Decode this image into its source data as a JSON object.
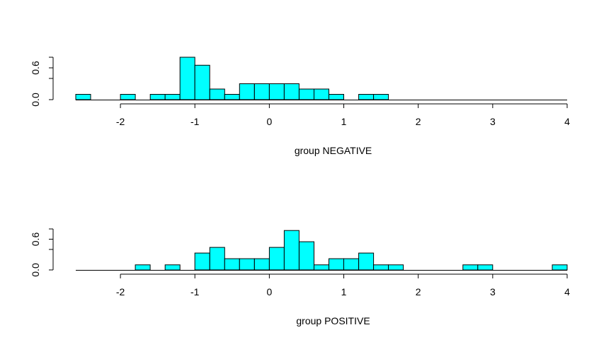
{
  "chart_data": [
    {
      "type": "bar",
      "xlabel": "group NEGATIVE",
      "ylabel": "",
      "title": "",
      "bar_color": "#00FFFF",
      "x_ticks": [
        "-2",
        "-1",
        "0",
        "1",
        "2",
        "3",
        "4"
      ],
      "x_tick_values": [
        -2,
        -1,
        0,
        1,
        2,
        3,
        4
      ],
      "y_ticks": [
        "0.0",
        "0.6"
      ],
      "y_tick_values": [
        0.0,
        0.6
      ],
      "xlim": [
        -2.6,
        4.0
      ],
      "ylim": [
        0,
        0.8
      ],
      "bin_width": 0.2,
      "bins": [
        {
          "start": -2.6,
          "value": 0.1
        },
        {
          "start": -2.0,
          "value": 0.1
        },
        {
          "start": -1.6,
          "value": 0.1
        },
        {
          "start": -1.4,
          "value": 0.1
        },
        {
          "start": -1.2,
          "value": 0.8
        },
        {
          "start": -1.0,
          "value": 0.65
        },
        {
          "start": -0.8,
          "value": 0.2
        },
        {
          "start": -0.6,
          "value": 0.1
        },
        {
          "start": -0.4,
          "value": 0.3
        },
        {
          "start": -0.2,
          "value": 0.3
        },
        {
          "start": 0.0,
          "value": 0.3
        },
        {
          "start": 0.2,
          "value": 0.3
        },
        {
          "start": 0.4,
          "value": 0.2
        },
        {
          "start": 0.6,
          "value": 0.2
        },
        {
          "start": 0.8,
          "value": 0.1
        },
        {
          "start": 1.2,
          "value": 0.1
        },
        {
          "start": 1.4,
          "value": 0.1
        }
      ]
    },
    {
      "type": "bar",
      "xlabel": "group POSITIVE",
      "ylabel": "",
      "title": "",
      "bar_color": "#00FFFF",
      "x_ticks": [
        "-2",
        "-1",
        "0",
        "1",
        "2",
        "3",
        "4"
      ],
      "x_tick_values": [
        -2,
        -1,
        0,
        1,
        2,
        3,
        4
      ],
      "y_ticks": [
        "0.0",
        "0.6"
      ],
      "y_tick_values": [
        0.0,
        0.6
      ],
      "xlim": [
        -2.6,
        4.0
      ],
      "ylim": [
        0,
        0.8
      ],
      "bin_width": 0.2,
      "bins": [
        {
          "start": -1.8,
          "value": 0.1
        },
        {
          "start": -1.4,
          "value": 0.1
        },
        {
          "start": -1.0,
          "value": 0.33
        },
        {
          "start": -0.8,
          "value": 0.44
        },
        {
          "start": -0.6,
          "value": 0.22
        },
        {
          "start": -0.4,
          "value": 0.22
        },
        {
          "start": -0.2,
          "value": 0.22
        },
        {
          "start": 0.0,
          "value": 0.44
        },
        {
          "start": 0.2,
          "value": 0.77
        },
        {
          "start": 0.4,
          "value": 0.55
        },
        {
          "start": 0.6,
          "value": 0.1
        },
        {
          "start": 0.8,
          "value": 0.22
        },
        {
          "start": 1.0,
          "value": 0.22
        },
        {
          "start": 1.2,
          "value": 0.33
        },
        {
          "start": 1.4,
          "value": 0.1
        },
        {
          "start": 1.6,
          "value": 0.1
        },
        {
          "start": 2.6,
          "value": 0.1
        },
        {
          "start": 2.8,
          "value": 0.1
        },
        {
          "start": 3.8,
          "value": 0.1
        }
      ]
    }
  ]
}
